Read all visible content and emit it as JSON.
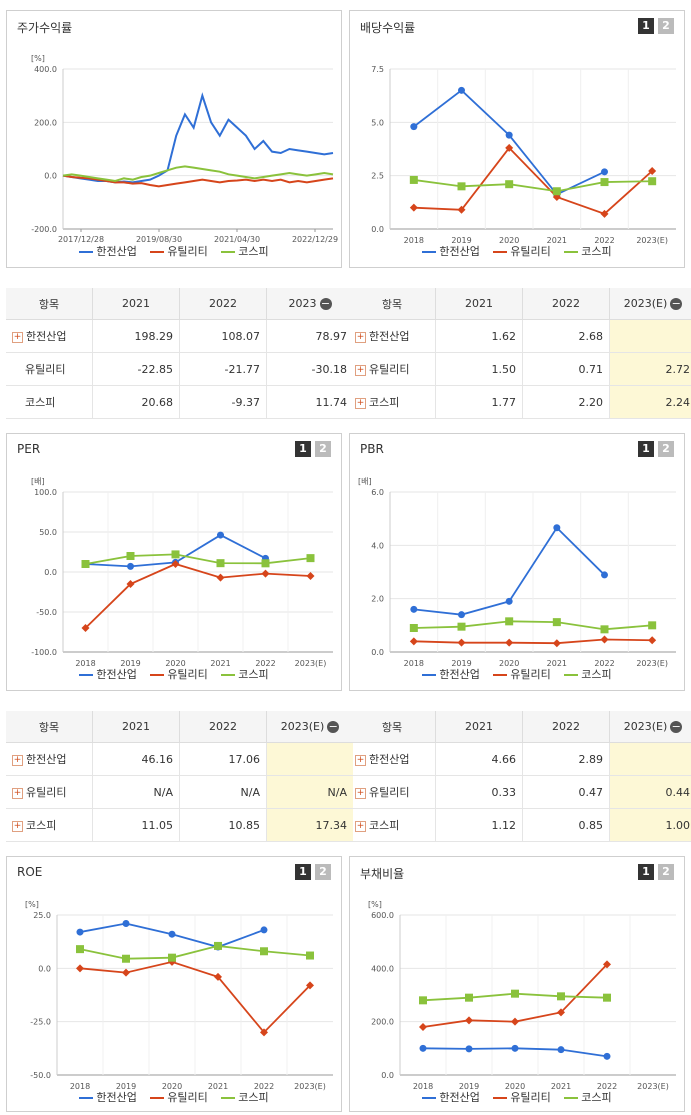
{
  "legend": {
    "s1": "한전산업",
    "s2": "유틸리티",
    "s3": "코스피"
  },
  "colors": {
    "s1": "#2f6fd6",
    "s2": "#d6451b",
    "s3": "#8ac23c"
  },
  "est_label_btn": "−",
  "charts": {
    "stock": {
      "title": "주가수익률",
      "unit": "[%]",
      "chart_data": {
        "type": "line",
        "x_ticks": [
          "2017/12/28",
          "2019/08/30",
          "2021/04/30",
          "2022/12/29"
        ],
        "y_ticks": [
          "400.0",
          "200.0",
          "0.0",
          "-200.0"
        ],
        "ylim": [
          -200,
          400
        ],
        "series": [
          {
            "name": "한전산업",
            "values": [
              0,
              -5,
              -10,
              -15,
              -20,
              -20,
              -25,
              -22,
              -25,
              -20,
              -15,
              0,
              20,
              150,
              230,
              180,
              300,
              200,
              150,
              210,
              180,
              150,
              100,
              130,
              90,
              85,
              100,
              95,
              90,
              85,
              80,
              85
            ]
          },
          {
            "name": "유틸리티",
            "values": [
              0,
              -5,
              -8,
              -10,
              -15,
              -20,
              -25,
              -25,
              -30,
              -28,
              -35,
              -40,
              -35,
              -30,
              -25,
              -20,
              -15,
              -20,
              -25,
              -20,
              -18,
              -15,
              -20,
              -15,
              -20,
              -15,
              -25,
              -20,
              -25,
              -20,
              -15,
              -10
            ]
          },
          {
            "name": "코스피",
            "values": [
              0,
              5,
              0,
              -5,
              -10,
              -15,
              -20,
              -10,
              -15,
              -5,
              0,
              10,
              20,
              30,
              35,
              30,
              25,
              20,
              15,
              5,
              0,
              -5,
              -10,
              -5,
              0,
              5,
              10,
              5,
              0,
              5,
              10,
              5
            ]
          }
        ]
      }
    },
    "dividend": {
      "title": "배당수익률",
      "page1": "1",
      "page2": "2",
      "chart_data": {
        "type": "line",
        "categories": [
          "2018",
          "2019",
          "2020",
          "2021",
          "2022",
          "2023(E)"
        ],
        "y_ticks": [
          "7.5",
          "5.0",
          "2.5",
          "0.0"
        ],
        "ylim": [
          0,
          7.5
        ],
        "series": [
          {
            "name": "한전산업",
            "values": [
              4.8,
              6.5,
              4.4,
              1.62,
              2.68,
              null
            ]
          },
          {
            "name": "유틸리티",
            "values": [
              1.0,
              0.9,
              3.8,
              1.5,
              0.71,
              2.72
            ]
          },
          {
            "name": "코스피",
            "values": [
              2.3,
              2.0,
              2.1,
              1.77,
              2.2,
              2.24
            ]
          }
        ]
      }
    },
    "per": {
      "title": "PER",
      "unit": "[배]",
      "page1": "1",
      "page2": "2",
      "chart_data": {
        "type": "line",
        "categories": [
          "2018",
          "2019",
          "2020",
          "2021",
          "2022",
          "2023(E)"
        ],
        "y_ticks": [
          "100.0",
          "50.0",
          "0.0",
          "-50.0",
          "-100.0"
        ],
        "ylim": [
          -100,
          100
        ],
        "series": [
          {
            "name": "한전산업",
            "values": [
              10,
              7,
              12,
              46.16,
              17.06,
              null
            ]
          },
          {
            "name": "유틸리티",
            "values": [
              -70,
              -15,
              10,
              -7,
              -2,
              -5
            ]
          },
          {
            "name": "코스피",
            "values": [
              10,
              20,
              22,
              11.05,
              10.85,
              17.34
            ]
          }
        ]
      }
    },
    "pbr": {
      "title": "PBR",
      "unit": "[배]",
      "page1": "1",
      "page2": "2",
      "chart_data": {
        "type": "line",
        "categories": [
          "2018",
          "2019",
          "2020",
          "2021",
          "2022",
          "2023(E)"
        ],
        "y_ticks": [
          "6.0",
          "4.0",
          "2.0",
          "0.0"
        ],
        "ylim": [
          0,
          6
        ],
        "series": [
          {
            "name": "한전산업",
            "values": [
              1.6,
              1.4,
              1.9,
              4.66,
              2.89,
              null
            ]
          },
          {
            "name": "유틸리티",
            "values": [
              0.4,
              0.35,
              0.35,
              0.33,
              0.47,
              0.44
            ]
          },
          {
            "name": "코스피",
            "values": [
              0.9,
              0.95,
              1.15,
              1.12,
              0.85,
              1.0
            ]
          }
        ]
      }
    },
    "roe": {
      "title": "ROE",
      "unit": "[%]",
      "page1": "1",
      "page2": "2",
      "chart_data": {
        "type": "line",
        "categories": [
          "2018",
          "2019",
          "2020",
          "2021",
          "2022",
          "2023(E)"
        ],
        "y_ticks": [
          "25.0",
          "0.0",
          "-25.0",
          "-50.0"
        ],
        "ylim": [
          -50,
          25
        ],
        "series": [
          {
            "name": "한전산업",
            "values": [
              17,
              21,
              16,
              10,
              18,
              null
            ]
          },
          {
            "name": "유틸리티",
            "values": [
              0,
              -2,
              3,
              -4,
              -30,
              -8
            ]
          },
          {
            "name": "코스피",
            "values": [
              9,
              4.5,
              5,
              10.5,
              8,
              6
            ]
          }
        ]
      }
    },
    "debt": {
      "title": "부채비율",
      "unit": "[%]",
      "page1": "1",
      "page2": "2",
      "chart_data": {
        "type": "line",
        "categories": [
          "2018",
          "2019",
          "2020",
          "2021",
          "2022",
          "2023(E)"
        ],
        "y_ticks": [
          "600.0",
          "400.0",
          "200.0",
          "0.0"
        ],
        "ylim": [
          0,
          600
        ],
        "series": [
          {
            "name": "한전산업",
            "values": [
              100,
              98,
              100,
              95,
              70,
              null
            ]
          },
          {
            "name": "유틸리티",
            "values": [
              180,
              205,
              200,
              235,
              415,
              null
            ]
          },
          {
            "name": "코스피",
            "values": [
              280,
              290,
              305,
              295,
              290,
              null
            ]
          }
        ]
      }
    }
  },
  "tables": {
    "stock": {
      "headers": [
        "항목",
        "2021",
        "2022",
        "2023"
      ],
      "rows": [
        {
          "name": "한전산업",
          "v": [
            "198.29",
            "108.07",
            "78.97"
          ]
        },
        {
          "name": "유틸리티",
          "v": [
            "-22.85",
            "-21.77",
            "-30.18"
          ]
        },
        {
          "name": "코스피",
          "v": [
            "20.68",
            "-9.37",
            "11.74"
          ]
        }
      ]
    },
    "dividend": {
      "headers": [
        "항목",
        "2021",
        "2022",
        "2023(E)"
      ],
      "rows": [
        {
          "name": "한전산업",
          "v": [
            "1.62",
            "2.68",
            ""
          ]
        },
        {
          "name": "유틸리티",
          "v": [
            "1.50",
            "0.71",
            "2.72"
          ]
        },
        {
          "name": "코스피",
          "v": [
            "1.77",
            "2.20",
            "2.24"
          ]
        }
      ]
    },
    "per": {
      "headers": [
        "항목",
        "2021",
        "2022",
        "2023(E)"
      ],
      "rows": [
        {
          "name": "한전산업",
          "v": [
            "46.16",
            "17.06",
            ""
          ]
        },
        {
          "name": "유틸리티",
          "v": [
            "N/A",
            "N/A",
            "N/A"
          ]
        },
        {
          "name": "코스피",
          "v": [
            "11.05",
            "10.85",
            "17.34"
          ]
        }
      ]
    },
    "pbr": {
      "headers": [
        "항목",
        "2021",
        "2022",
        "2023(E)"
      ],
      "rows": [
        {
          "name": "한전산업",
          "v": [
            "4.66",
            "2.89",
            ""
          ]
        },
        {
          "name": "유틸리티",
          "v": [
            "0.33",
            "0.47",
            "0.44"
          ]
        },
        {
          "name": "코스피",
          "v": [
            "1.12",
            "0.85",
            "1.00"
          ]
        }
      ]
    }
  }
}
